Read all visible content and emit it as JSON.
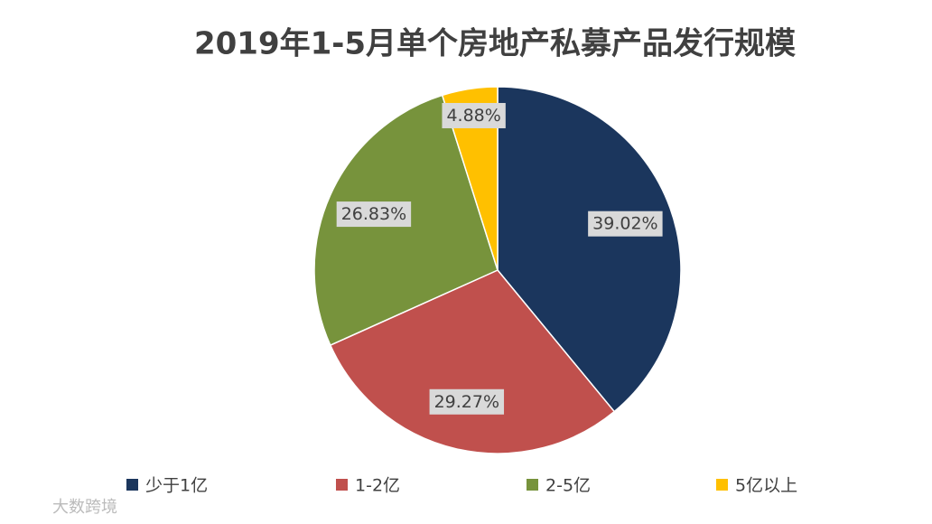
{
  "chart_data": {
    "type": "pie",
    "title": "2019年1-5月单个房地产私募产品发行规模",
    "categories": [
      "少于1亿",
      "1-2亿",
      "2-5亿",
      "5亿以上"
    ],
    "values": [
      39.02,
      29.27,
      26.83,
      4.88
    ],
    "value_labels": [
      "39.02%",
      "29.27%",
      "26.83%",
      "4.88%"
    ],
    "colors": [
      "#1b365d",
      "#c0504d",
      "#77933c",
      "#ffc000"
    ],
    "legend": "bottom"
  },
  "watermark": "大数跨境"
}
